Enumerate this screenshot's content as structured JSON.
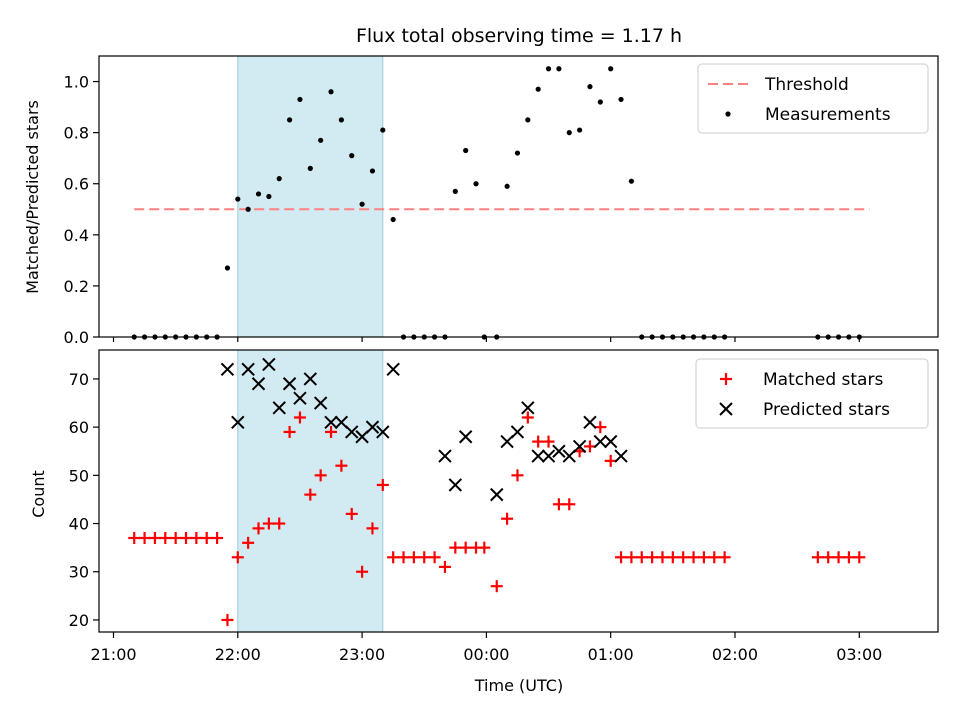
{
  "chart_data": [
    {
      "type": "scatter",
      "title": "Flux total observing time = 1.17 h",
      "ylabel": "Matched/Predicted stars",
      "xlim": [
        "21:12",
        "03:25"
      ],
      "ylim": [
        0,
        1.1
      ],
      "x_ticks": [],
      "y_ticks": [
        "0.0",
        "0.2",
        "0.4",
        "0.6",
        "0.8",
        "1.0"
      ],
      "y_tick_values": [
        0,
        0.2,
        0.4,
        0.6,
        0.8,
        1.0
      ],
      "shaded_span": [
        "22:00",
        "23:10"
      ],
      "shade_color": "#add8e6",
      "legend_position": "top-right",
      "legend": [
        "Threshold",
        "Measurements"
      ],
      "threshold": {
        "value": 0.5,
        "x_range": [
          "21:10",
          "03:05"
        ],
        "color": "#ff8080"
      },
      "series": [
        {
          "name": "Measurements",
          "marker": "dot",
          "color": "#000000",
          "x": [
            "21:10",
            "21:15",
            "21:20",
            "21:25",
            "21:30",
            "21:35",
            "21:40",
            "21:45",
            "21:50",
            "21:55",
            "22:00",
            "22:05",
            "22:10",
            "22:15",
            "22:20",
            "22:25",
            "22:30",
            "22:35",
            "22:40",
            "22:45",
            "22:50",
            "22:55",
            "23:00",
            "23:05",
            "23:10",
            "23:15",
            "23:20",
            "23:25",
            "23:30",
            "23:35",
            "23:40",
            "23:45",
            "23:50",
            "23:55",
            "23:59",
            "00:05",
            "00:10",
            "00:15",
            "00:20",
            "00:25",
            "00:30",
            "00:35",
            "00:40",
            "00:45",
            "00:50",
            "00:55",
            "01:00",
            "01:05",
            "01:10",
            "01:15",
            "01:20",
            "01:25",
            "01:30",
            "01:35",
            "01:40",
            "01:45",
            "01:50",
            "01:55",
            "02:40",
            "02:45",
            "02:50",
            "02:55",
            "03:00"
          ],
          "y": [
            0,
            0,
            0,
            0,
            0,
            0,
            0,
            0,
            0,
            0.27,
            0.54,
            0.5,
            0.56,
            0.55,
            0.62,
            0.85,
            0.93,
            0.66,
            0.77,
            0.96,
            0.85,
            0.71,
            0.52,
            0.65,
            0.81,
            0.46,
            0,
            0,
            0,
            0,
            0,
            0.57,
            0.73,
            0.6,
            0,
            0,
            0.59,
            0.72,
            0.85,
            0.97,
            1.05,
            1.05,
            0.8,
            0.81,
            0.98,
            0.92,
            1.05,
            0.93,
            0.61,
            0,
            0,
            0,
            0,
            0,
            0,
            0,
            0,
            0,
            0,
            0,
            0,
            0,
            0
          ]
        }
      ]
    },
    {
      "type": "scatter",
      "xlabel": "Time (UTC)",
      "ylabel": "Count",
      "xlim": [
        "21:12",
        "03:25"
      ],
      "ylim": [
        17.5,
        76
      ],
      "x_ticks": [
        "21:00",
        "22:00",
        "23:00",
        "00:00",
        "01:00",
        "02:00",
        "03:00"
      ],
      "y_ticks": [
        "20",
        "30",
        "40",
        "50",
        "60",
        "70"
      ],
      "y_tick_values": [
        20,
        30,
        40,
        50,
        60,
        70
      ],
      "shaded_span": [
        "22:00",
        "23:10"
      ],
      "shade_color": "#add8e6",
      "legend_position": "top-right",
      "legend": [
        "Matched stars",
        "Predicted stars"
      ],
      "series": [
        {
          "name": "Matched stars",
          "marker": "plus",
          "color": "#ff0000",
          "x": [
            "21:10",
            "21:15",
            "21:20",
            "21:25",
            "21:30",
            "21:35",
            "21:40",
            "21:45",
            "21:50",
            "21:55",
            "22:00",
            "22:05",
            "22:10",
            "22:15",
            "22:20",
            "22:25",
            "22:30",
            "22:35",
            "22:40",
            "22:45",
            "22:50",
            "22:55",
            "23:00",
            "23:05",
            "23:10",
            "23:15",
            "23:20",
            "23:25",
            "23:30",
            "23:35",
            "23:40",
            "23:45",
            "23:50",
            "23:55",
            "23:59",
            "00:05",
            "00:10",
            "00:15",
            "00:20",
            "00:25",
            "00:30",
            "00:35",
            "00:40",
            "00:45",
            "00:50",
            "00:55",
            "01:00",
            "01:05",
            "01:10",
            "01:15",
            "01:20",
            "01:25",
            "01:30",
            "01:35",
            "01:40",
            "01:45",
            "01:50",
            "01:55",
            "02:40",
            "02:45",
            "02:50",
            "02:55",
            "03:00"
          ],
          "y": [
            37,
            37,
            37,
            37,
            37,
            37,
            37,
            37,
            37,
            20,
            33,
            36,
            39,
            40,
            40,
            59,
            62,
            46,
            50,
            59,
            52,
            42,
            30,
            39,
            48,
            33,
            33,
            33,
            33,
            33,
            31,
            35,
            35,
            35,
            35,
            27,
            41,
            50,
            62,
            57,
            57,
            44,
            44,
            55,
            56,
            60,
            53,
            33,
            33,
            33,
            33,
            33,
            33,
            33,
            33,
            33,
            33,
            33,
            33,
            33,
            33,
            33,
            33
          ]
        },
        {
          "name": "Predicted stars",
          "marker": "x",
          "color": "#000000",
          "x": [
            "22:00",
            "21:55",
            "22:05",
            "22:10",
            "22:15",
            "22:20",
            "22:25",
            "22:30",
            "22:35",
            "22:40",
            "22:45",
            "22:50",
            "22:55",
            "23:00",
            "23:05",
            "23:10",
            "23:15",
            "23:40",
            "23:45",
            "23:50",
            "00:05",
            "00:10",
            "00:15",
            "00:20",
            "00:25",
            "00:30",
            "00:35",
            "00:40",
            "00:45",
            "00:50",
            "00:55",
            "01:00",
            "01:05"
          ],
          "y": [
            61,
            72,
            72,
            69,
            73,
            64,
            69,
            66,
            70,
            65,
            61,
            61,
            59,
            58,
            60,
            59,
            72,
            54,
            48,
            58,
            46,
            57,
            59,
            64,
            54,
            54,
            55,
            54,
            56,
            61,
            57,
            57,
            54
          ]
        }
      ]
    }
  ]
}
